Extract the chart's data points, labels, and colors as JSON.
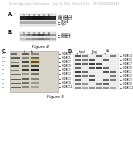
{
  "bg_color": "#ffffff",
  "header_text": "Human Application Publications     Sep. 22, 2016   Sheet 5 of 12     US 2016/0000000 A1",
  "fig4_label": "Figure 4",
  "fig5_label": "Figure 5",
  "panel_A_label": "A.",
  "panel_B_label": "B.",
  "panel_C_label": "C.",
  "panel_D_label": "D."
}
